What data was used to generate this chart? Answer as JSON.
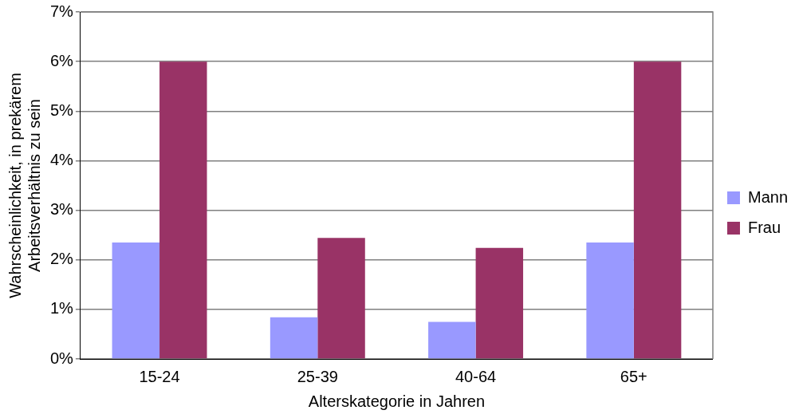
{
  "chart_data": {
    "type": "bar",
    "xlabel": "Alterskategorie in Jahren",
    "ylabel": "Wahrscheinlichkeit, in prekärem Arbeitsverhältnis zu sein",
    "categories": [
      "15-24",
      "25-39",
      "40-64",
      "65+"
    ],
    "series": [
      {
        "name": "Mann",
        "color": "#9999ff",
        "values": [
          2.35,
          0.84,
          0.75,
          2.35
        ]
      },
      {
        "name": "Frau",
        "color": "#993366",
        "values": [
          6.0,
          2.44,
          2.24,
          6.0
        ]
      }
    ],
    "ylim": [
      0,
      7
    ],
    "yticks": [
      {
        "value": 0,
        "label": "0%"
      },
      {
        "value": 1,
        "label": "1%"
      },
      {
        "value": 2,
        "label": "2%"
      },
      {
        "value": 3,
        "label": "3%"
      },
      {
        "value": 4,
        "label": "4%"
      },
      {
        "value": 5,
        "label": "5%"
      },
      {
        "value": 6,
        "label": "6%"
      },
      {
        "value": 7,
        "label": "7%"
      }
    ],
    "grid": "y",
    "legend": "right"
  }
}
